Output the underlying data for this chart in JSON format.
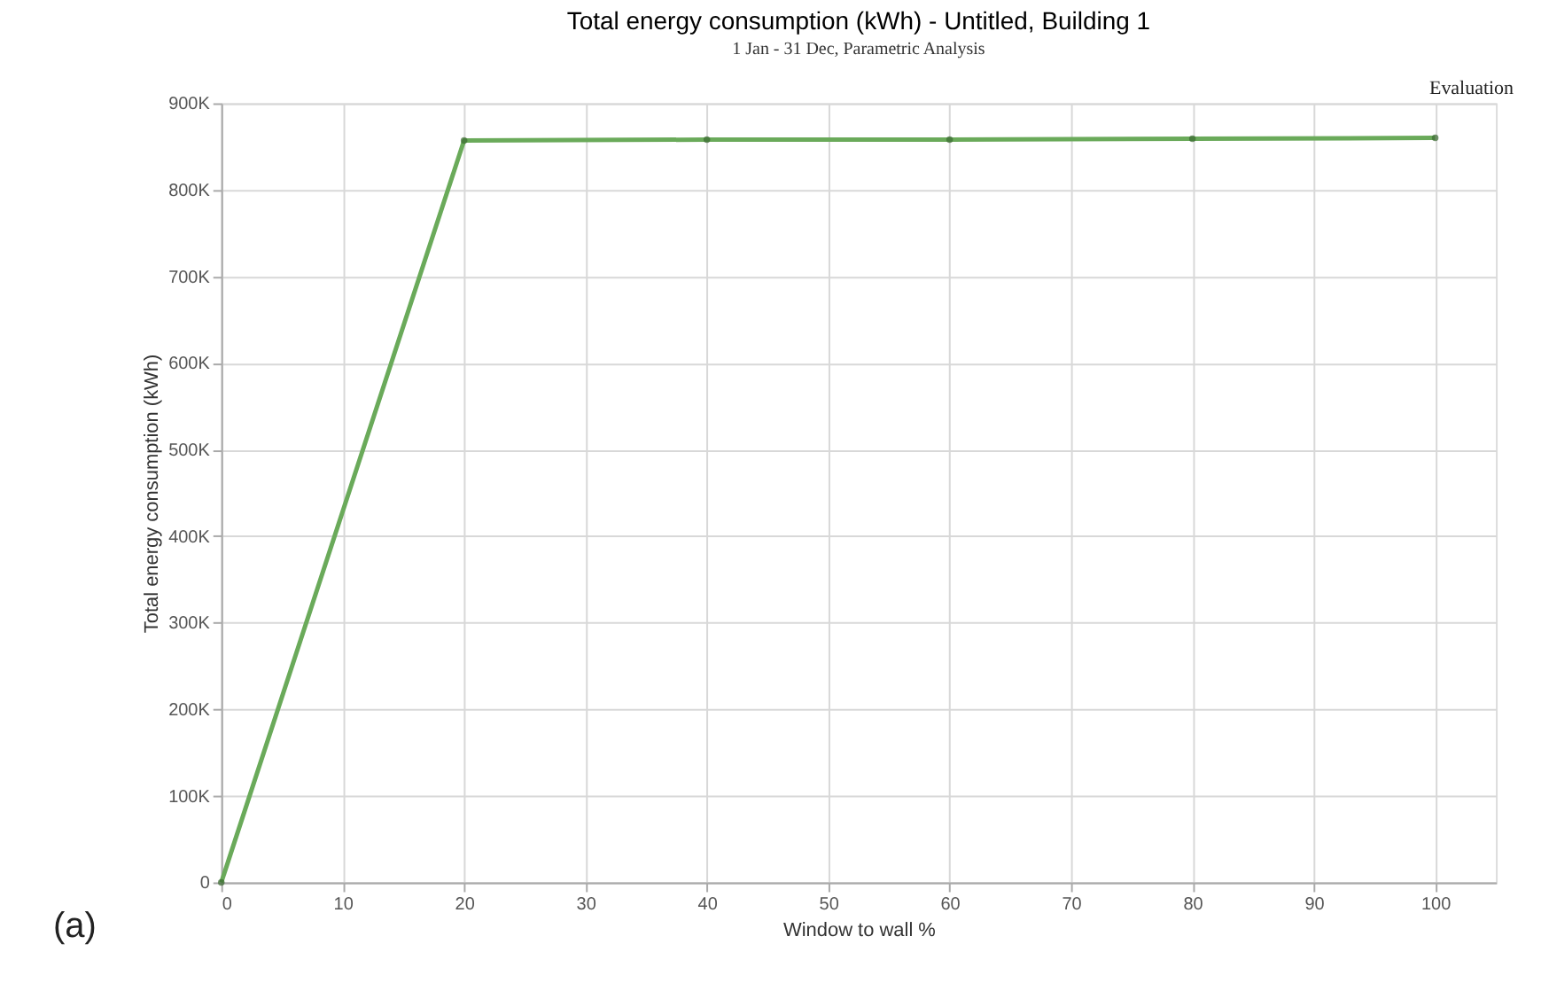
{
  "chart_data": {
    "type": "line",
    "title": "Total energy consumption (kWh) - Untitled, Building 1",
    "subtitle": "1 Jan - 31 Dec, Parametric Analysis",
    "xlabel": "Window to wall %",
    "ylabel": "Total energy consumption (kWh)",
    "annotations": [
      "Evaluation",
      "(a)"
    ],
    "x": [
      0,
      20,
      40,
      60,
      80,
      100
    ],
    "series": [
      {
        "color": "#6aaa5a",
        "values": [
          0,
          857000,
          858000,
          858000,
          859000,
          860000
        ]
      }
    ],
    "xlim": [
      0,
      105
    ],
    "xticks": [
      0,
      10,
      20,
      30,
      40,
      50,
      60,
      70,
      80,
      90,
      100
    ],
    "ylim": [
      0,
      900000
    ],
    "yticks": [
      0,
      {
        "value": 100000,
        "label": "100K"
      },
      {
        "value": 200000,
        "label": "200K"
      },
      {
        "value": 300000,
        "label": "300K"
      },
      {
        "value": 400000,
        "label": "400K"
      },
      {
        "value": 500000,
        "label": "500K"
      },
      {
        "value": 600000,
        "label": "600K"
      },
      {
        "value": 700000,
        "label": "700K"
      },
      {
        "value": 800000,
        "label": "800K"
      },
      {
        "value": 900000,
        "label": "900K"
      }
    ],
    "grid": true,
    "marker": "circle",
    "line_style": "solid"
  }
}
